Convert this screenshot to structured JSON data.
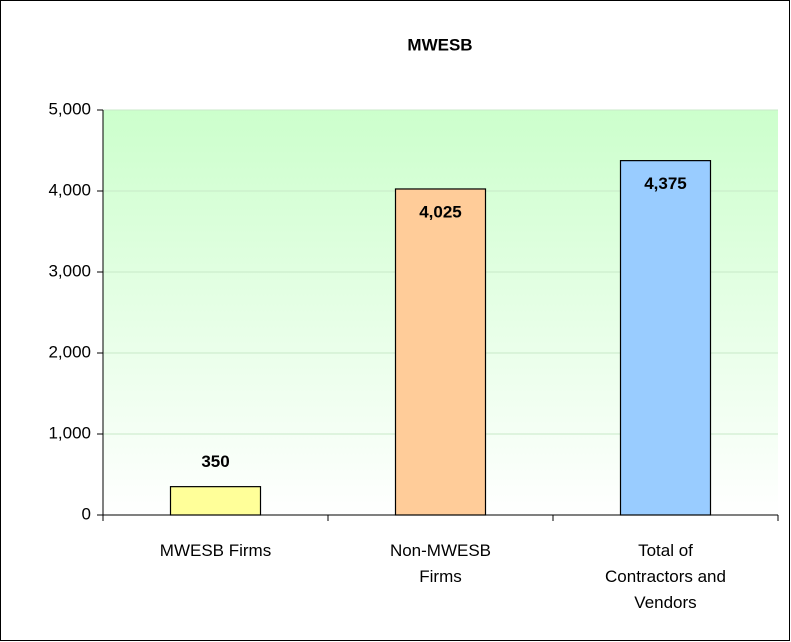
{
  "chart_data": {
    "type": "bar",
    "title": "MWESB",
    "categories": [
      "MWESB Firms",
      "Non-MWESB Firms",
      "Total of Contractors and Vendors"
    ],
    "values": [
      350,
      4025,
      4375
    ],
    "value_labels": [
      "350",
      "4,025",
      "4,375"
    ],
    "colors": [
      "#ffff99",
      "#ffcc99",
      "#99ccff"
    ],
    "ylim": [
      0,
      5000
    ],
    "yticks": [
      0,
      {
        "value": 1000,
        "label": "1,000"
      },
      {
        "value": 2000,
        "label": "2,000"
      },
      {
        "value": 3000,
        "label": "3,000"
      },
      {
        "value": 4000,
        "label": "4,000"
      },
      {
        "value": 5000,
        "label": "5,000"
      }
    ],
    "grid": true
  }
}
